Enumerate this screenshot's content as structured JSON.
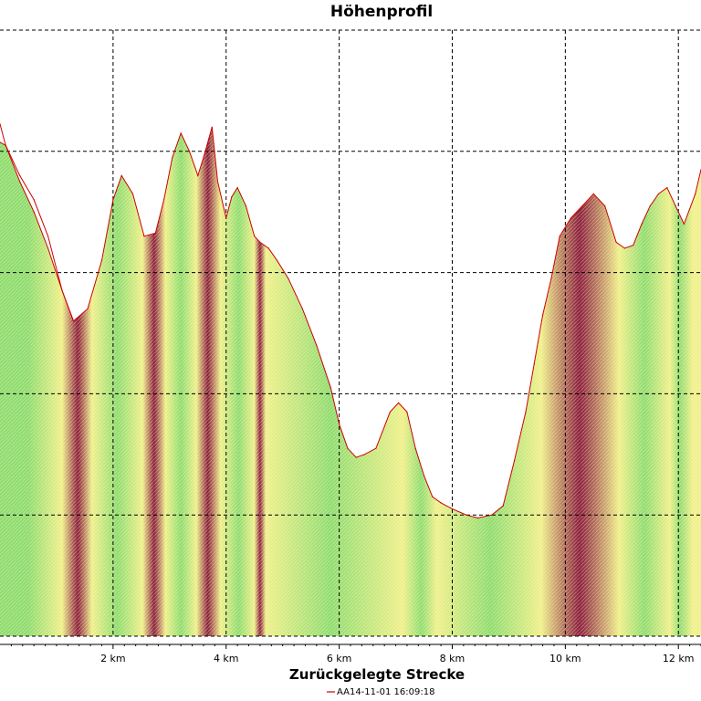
{
  "chart_data": {
    "type": "area",
    "title": "Höhenprofil",
    "xlabel": "Zurückgelegte Strecke",
    "ylabel": "",
    "xlim": [
      0.0,
      12.4
    ],
    "ylim": [
      0,
      100
    ],
    "x_unit": "km",
    "x_ticks": [
      {
        "value": 2,
        "label": "2 km"
      },
      {
        "value": 4,
        "label": "4 km"
      },
      {
        "value": 6,
        "label": "6 km"
      },
      {
        "value": 8,
        "label": "8 km"
      },
      {
        "value": 10,
        "label": "10 km"
      },
      {
        "value": 12,
        "label": "12 km"
      }
    ],
    "y_gridlines": [
      0,
      20,
      40,
      60,
      80,
      100
    ],
    "grid": true,
    "legend_position": "bottom-center",
    "series": [
      {
        "name": "AA14-11-01 16:09:18",
        "line_color": "#cc0000",
        "x": [
          0.0,
          0.1,
          0.35,
          0.6,
          0.85,
          1.1,
          1.3,
          1.55,
          1.8,
          2.0,
          2.15,
          2.35,
          2.55,
          2.75,
          2.9,
          3.05,
          3.2,
          3.35,
          3.5,
          3.6,
          3.75,
          3.85,
          4.0,
          4.1,
          4.2,
          4.35,
          4.5,
          4.6,
          4.75,
          4.9,
          5.1,
          5.35,
          5.6,
          5.85,
          6.0,
          6.15,
          6.3,
          6.45,
          6.65,
          6.9,
          7.05,
          7.2,
          7.35,
          7.5,
          7.65,
          7.8,
          8.0,
          8.25,
          8.45,
          8.7,
          8.9,
          9.1,
          9.3,
          9.45,
          9.6,
          9.75,
          9.9,
          10.1,
          10.3,
          10.5,
          10.7,
          10.9,
          11.05,
          11.2,
          11.35,
          11.5,
          11.65,
          11.8,
          11.95,
          12.1,
          12.3,
          12.4
        ],
        "y": [
          81.5,
          81.0,
          75.0,
          70.0,
          64.0,
          57.0,
          52.0,
          54.0,
          62.0,
          72.0,
          76.0,
          73.0,
          66.0,
          66.5,
          72.0,
          79.0,
          83.0,
          80.0,
          76.0,
          79.0,
          84.0,
          75.0,
          69.0,
          72.5,
          74.0,
          71.0,
          66.0,
          65.0,
          64.0,
          62.0,
          59.0,
          54.0,
          48.0,
          41.0,
          35.0,
          31.0,
          29.5,
          30.0,
          31.0,
          37.0,
          38.5,
          37.0,
          31.0,
          26.5,
          23.0,
          22.0,
          21.0,
          20.0,
          19.5,
          20.0,
          21.5,
          29.0,
          37.0,
          45.0,
          53.0,
          59.0,
          66.0,
          69.0,
          71.0,
          73.0,
          71.0,
          65.0,
          64.0,
          64.5,
          68.0,
          71.0,
          73.0,
          74.0,
          71.0,
          68.0,
          73.0,
          77.0
        ]
      },
      {
        "name": "",
        "line_color": "#cc0000",
        "x": [
          0.0,
          0.1,
          0.35,
          0.6,
          0.85,
          1.1,
          1.3
        ],
        "y": [
          84.5,
          81.0,
          76.0,
          72.0,
          66.0,
          57.0,
          52.0
        ]
      }
    ],
    "gradient_stripes": {
      "colors": {
        "flat": "#8fdc6c",
        "moderate": "#f0f088",
        "steep": "#8c1e3a"
      },
      "bands": [
        {
          "x0": 0.0,
          "x1": 1.0,
          "level": "flat"
        },
        {
          "x0": 1.0,
          "x1": 1.2,
          "level": "moderate"
        },
        {
          "x0": 1.2,
          "x1": 1.55,
          "level": "steep"
        },
        {
          "x0": 1.55,
          "x1": 1.7,
          "level": "moderate"
        },
        {
          "x0": 1.7,
          "x1": 2.45,
          "level": "flat"
        },
        {
          "x0": 2.45,
          "x1": 2.6,
          "level": "moderate"
        },
        {
          "x0": 2.6,
          "x1": 2.85,
          "level": "steep"
        },
        {
          "x0": 2.85,
          "x1": 3.0,
          "level": "moderate"
        },
        {
          "x0": 3.0,
          "x1": 3.4,
          "level": "flat"
        },
        {
          "x0": 3.4,
          "x1": 3.55,
          "level": "moderate"
        },
        {
          "x0": 3.55,
          "x1": 3.8,
          "level": "steep"
        },
        {
          "x0": 3.8,
          "x1": 4.0,
          "level": "moderate"
        },
        {
          "x0": 4.0,
          "x1": 4.45,
          "level": "flat"
        },
        {
          "x0": 4.45,
          "x1": 4.55,
          "level": "moderate"
        },
        {
          "x0": 4.55,
          "x1": 4.65,
          "level": "steep"
        },
        {
          "x0": 4.65,
          "x1": 4.75,
          "level": "moderate"
        },
        {
          "x0": 4.75,
          "x1": 6.95,
          "level": "flat"
        },
        {
          "x0": 6.95,
          "x1": 7.3,
          "level": "moderate"
        },
        {
          "x0": 7.3,
          "x1": 7.6,
          "level": "flat"
        },
        {
          "x0": 7.6,
          "x1": 7.85,
          "level": "moderate"
        },
        {
          "x0": 7.85,
          "x1": 9.5,
          "level": "flat"
        },
        {
          "x0": 9.5,
          "x1": 9.65,
          "level": "moderate"
        },
        {
          "x0": 9.65,
          "x1": 10.85,
          "level": "steep"
        },
        {
          "x0": 10.85,
          "x1": 11.05,
          "level": "moderate"
        },
        {
          "x0": 11.05,
          "x1": 11.75,
          "level": "flat"
        },
        {
          "x0": 11.75,
          "x1": 11.95,
          "level": "moderate"
        },
        {
          "x0": 11.95,
          "x1": 12.1,
          "level": "flat"
        },
        {
          "x0": 12.1,
          "x1": 12.4,
          "level": "moderate"
        }
      ]
    }
  }
}
